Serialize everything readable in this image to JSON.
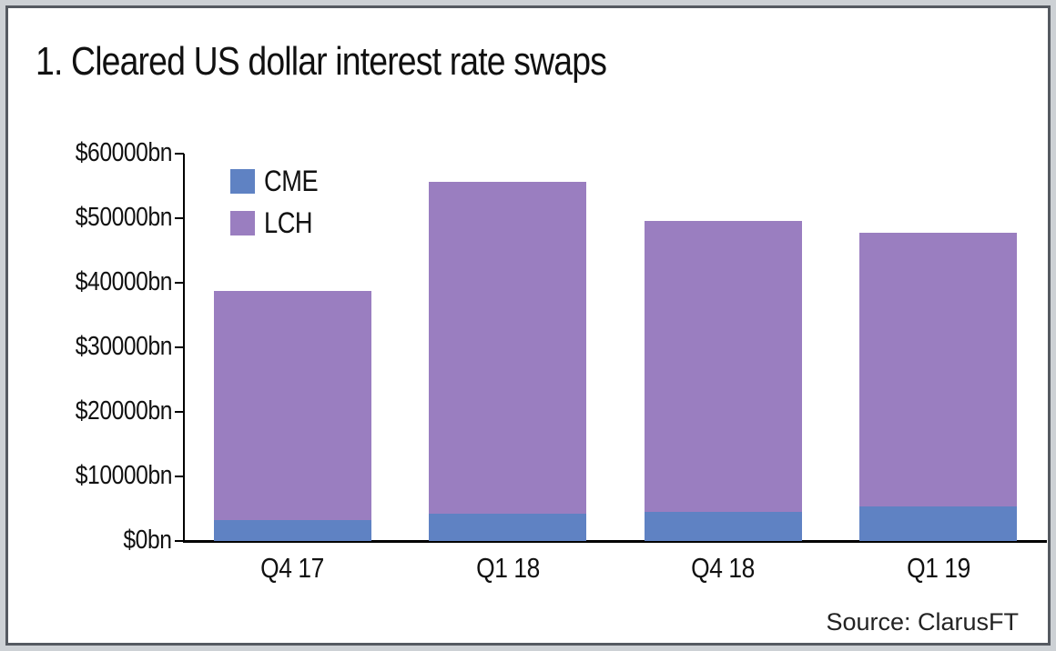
{
  "chart_data": {
    "type": "bar",
    "stacked": true,
    "title": "1. Cleared US dollar interest rate swaps",
    "categories": [
      "Q4 17",
      "Q1 18",
      "Q4 18",
      "Q1 19"
    ],
    "series": [
      {
        "name": "CME",
        "color": "#5f82c3",
        "values": [
          3200,
          4200,
          4500,
          5400
        ]
      },
      {
        "name": "LCH",
        "color": "#9a7ec0",
        "values": [
          35500,
          51400,
          45100,
          42400
        ]
      }
    ],
    "totals": [
      38700,
      55600,
      49600,
      47800
    ],
    "xlabel": "",
    "ylabel": "",
    "ylim": [
      0,
      60000
    ],
    "y_tick_values": [
      0,
      10000,
      20000,
      30000,
      40000,
      50000,
      60000
    ],
    "y_tick_labels": [
      "$0bn",
      "$10000bn",
      "$20000bn",
      "$30000bn",
      "$40000bn",
      "$50000bn",
      "$60000bn"
    ],
    "legend_position": "top-left-inside",
    "grid": false
  },
  "source": {
    "label": "Source: ClarusFT"
  },
  "colors": {
    "axis": "#000000",
    "frame_border": "#555a61",
    "background": "#ffffff"
  }
}
